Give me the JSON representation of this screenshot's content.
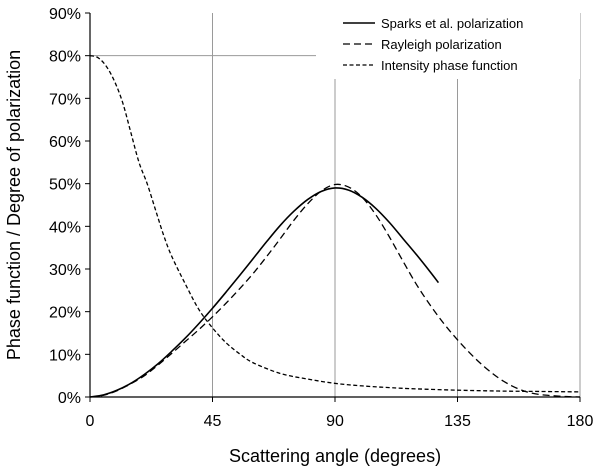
{
  "chart_data": {
    "type": "line",
    "title": "",
    "xlabel": "Scattering angle (degrees)",
    "ylabel": "Phase function / Degree of polarization",
    "xlim": [
      0,
      180
    ],
    "ylim": [
      0,
      90
    ],
    "x_ticks": [
      0,
      45,
      90,
      135,
      180
    ],
    "x_tick_labels": [
      "0",
      "45",
      "90",
      "135",
      "180"
    ],
    "y_ticks": [
      0,
      10,
      20,
      30,
      40,
      50,
      60,
      70,
      80,
      90
    ],
    "y_tick_labels": [
      "0%",
      "10%",
      "20%",
      "30%",
      "40%",
      "50%",
      "60%",
      "70%",
      "80%",
      "90%"
    ],
    "grid": "vertical",
    "legend_position": "top-right",
    "series": [
      {
        "name": "Sparks et al. polarization",
        "style": "solid",
        "color": "#000000",
        "x": [
          0,
          5,
          10,
          15,
          20,
          25,
          30,
          35,
          40,
          45,
          50,
          55,
          60,
          65,
          70,
          75,
          80,
          85,
          90,
          95,
          100,
          105,
          110,
          115,
          120,
          125,
          128
        ],
        "y": [
          0,
          0.5,
          1.6,
          3.2,
          5.3,
          7.8,
          10.7,
          13.8,
          17.2,
          20.8,
          24.6,
          28.5,
          32.5,
          36.5,
          40.3,
          43.6,
          46.3,
          48.2,
          49,
          48.5,
          46.8,
          44.2,
          40.9,
          37.1,
          33.3,
          29.3,
          26.8
        ]
      },
      {
        "name": "Rayleigh polarization",
        "style": "dashed",
        "color": "#000000",
        "x": [
          0,
          5,
          10,
          15,
          20,
          25,
          30,
          35,
          40,
          45,
          50,
          55,
          60,
          65,
          70,
          75,
          80,
          85,
          90,
          95,
          100,
          105,
          110,
          115,
          120,
          125,
          130,
          135,
          140,
          145,
          150,
          155,
          160,
          165,
          170,
          175,
          180
        ],
        "y": [
          0,
          0.4,
          1.5,
          3.1,
          5,
          7.5,
          10.2,
          13,
          15.8,
          18.8,
          22,
          25.4,
          29,
          33,
          37.2,
          41.5,
          45.3,
          48.3,
          49.8,
          49.2,
          46.8,
          42.7,
          37.5,
          31.8,
          26.3,
          21.5,
          17.2,
          13.4,
          10,
          7,
          4.5,
          2.6,
          1.3,
          0.6,
          0.3,
          0.1,
          0
        ]
      },
      {
        "name": "Intensity phase function",
        "style": "short-dash",
        "color": "#000000",
        "x": [
          0,
          3,
          6,
          9,
          12,
          15,
          18,
          21,
          24,
          27,
          30,
          35,
          40,
          45,
          50,
          55,
          60,
          70,
          80,
          90,
          100,
          110,
          120,
          135,
          150,
          165,
          180
        ],
        "y": [
          80,
          79.5,
          77.5,
          74,
          69,
          62,
          55,
          50,
          44,
          38,
          33,
          26.5,
          20.5,
          16.2,
          12.7,
          10.1,
          8,
          5.5,
          4.2,
          3.2,
          2.6,
          2.2,
          1.9,
          1.6,
          1.4,
          1.3,
          1.2
        ]
      }
    ]
  }
}
